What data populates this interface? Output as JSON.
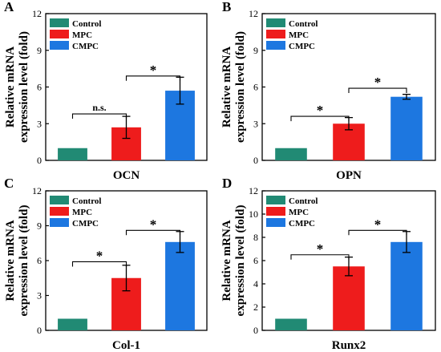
{
  "chart_data": [
    {
      "type": "bar",
      "panel": "A",
      "categories": [
        "Control",
        "MPC",
        "CMPC"
      ],
      "values": [
        1.0,
        2.7,
        5.7
      ],
      "errors": [
        0.0,
        0.9,
        1.1
      ],
      "xlabel": "OCN",
      "ylabel": "Relative mRNA expression level (fold)",
      "ylim": [
        0,
        12
      ],
      "yticks": [
        "0",
        "3",
        "6",
        "9",
        "12"
      ],
      "legend": [
        "Control",
        "MPC",
        "CMPC"
      ],
      "significance": [
        {
          "from": 0,
          "to": 1,
          "label": "n.s.",
          "y": 3.8
        },
        {
          "from": 1,
          "to": 2,
          "label": "*",
          "y": 6.9
        }
      ]
    },
    {
      "type": "bar",
      "panel": "B",
      "categories": [
        "Control",
        "MPC",
        "CMPC"
      ],
      "values": [
        1.0,
        3.0,
        5.2
      ],
      "errors": [
        0.0,
        0.5,
        0.2
      ],
      "xlabel": "OPN",
      "ylabel": "Relative mRNA expression level (fold)",
      "ylim": [
        0,
        12
      ],
      "yticks": [
        "0",
        "3",
        "6",
        "9",
        "12"
      ],
      "legend": [
        "Control",
        "MPC",
        "CMPC"
      ],
      "significance": [
        {
          "from": 0,
          "to": 1,
          "label": "*",
          "y": 3.6
        },
        {
          "from": 1,
          "to": 2,
          "label": "*",
          "y": 5.9
        }
      ]
    },
    {
      "type": "bar",
      "panel": "C",
      "categories": [
        "Control",
        "MPC",
        "CMPC"
      ],
      "values": [
        1.0,
        4.5,
        7.6
      ],
      "errors": [
        0.0,
        1.1,
        0.9
      ],
      "xlabel": "Col-1",
      "ylabel": "Relative mRNA expression level (fold)",
      "ylim": [
        0,
        12
      ],
      "yticks": [
        "0",
        "3",
        "6",
        "9",
        "12"
      ],
      "legend": [
        "Control",
        "MPC",
        "CMPC"
      ],
      "significance": [
        {
          "from": 0,
          "to": 1,
          "label": "*",
          "y": 5.9
        },
        {
          "from": 1,
          "to": 2,
          "label": "*",
          "y": 8.6
        }
      ]
    },
    {
      "type": "bar",
      "panel": "D",
      "categories": [
        "Control",
        "MPC",
        "CMPC"
      ],
      "values": [
        1.0,
        5.5,
        7.6
      ],
      "errors": [
        0.0,
        0.8,
        0.9
      ],
      "xlabel": "Runx2",
      "ylabel": "Relative mRNA expression level (fold)",
      "ylim": [
        0,
        12
      ],
      "yticks": [
        "0",
        "2",
        "4",
        "6",
        "8",
        "10",
        "12"
      ],
      "legend": [
        "Control",
        "MPC",
        "CMPC"
      ],
      "significance": [
        {
          "from": 0,
          "to": 1,
          "label": "*",
          "y": 6.5
        },
        {
          "from": 1,
          "to": 2,
          "label": "*",
          "y": 8.6
        }
      ]
    }
  ],
  "colors": {
    "Control": "#218a74",
    "MPC": "#ee1c1c",
    "CMPC": "#1d77e0",
    "axis": "#000000"
  }
}
